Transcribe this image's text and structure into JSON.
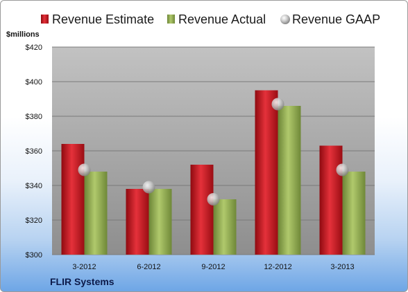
{
  "chart_data": {
    "type": "bar",
    "ylabel": "$millions",
    "ylim": [
      300,
      420
    ],
    "yticks": [
      "$300",
      "$320",
      "$340",
      "$360",
      "$380",
      "$400",
      "$420"
    ],
    "categories": [
      "3-2012",
      "6-2012",
      "9-2012",
      "12-2012",
      "3-2013"
    ],
    "series": [
      {
        "name": "Revenue Estimate",
        "values": [
          364,
          338,
          352,
          395,
          363
        ],
        "color": "#c0141c"
      },
      {
        "name": "Revenue Actual",
        "values": [
          348,
          338,
          332,
          386,
          348
        ],
        "color": "#8faa4e"
      },
      {
        "name": "Revenue GAAP",
        "values": [
          349,
          339,
          332,
          387,
          349
        ],
        "marker": "sphere",
        "color": "#b8b8b8"
      }
    ],
    "legend": "top",
    "grid": true
  },
  "footer": {
    "company": "FLIR Systems"
  }
}
